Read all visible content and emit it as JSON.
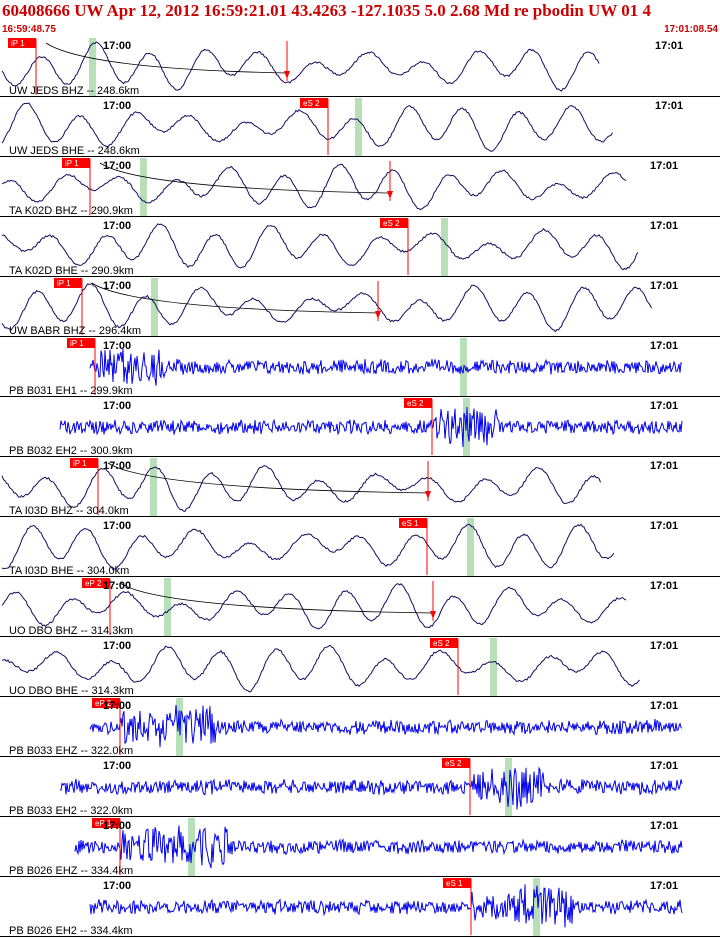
{
  "header": {
    "title": "60408666 UW Apr 12, 2012 16:59:21.01    43.4263 -127.1035  5.0 2.68 Md re pbodin UW 01    4",
    "start_time": "16:59:48.75",
    "end_time": "17:01:08.54"
  },
  "colors": {
    "title": "#cc0000",
    "broadband": "#1a0a60",
    "shortperiod": "#0000ee",
    "pick": "#ff0000",
    "window": "#b8e0b8"
  },
  "traces": [
    {
      "label": "UW JEDS BHZ -- 248.6km",
      "tick1": "17:00",
      "tick2": "17:01",
      "pick": "iP 1",
      "type": "bb",
      "pickx": 36,
      "windowx": 89,
      "tick1x": 103,
      "tick2x": 655,
      "secondx": 287,
      "curve": true
    },
    {
      "label": "UW JEDS BHE -- 248.6km",
      "tick1": "17:00",
      "tick2": "17:01",
      "pick": "eS 2",
      "type": "bb",
      "pickx": 328,
      "windowx": 355,
      "tick1x": 103,
      "tick2x": 655,
      "secondx": null,
      "curve": false
    },
    {
      "label": "TA K02D BHZ -- 290.9km",
      "tick1": "17:00",
      "tick2": "17:01",
      "pick": "iP 1",
      "type": "bb",
      "pickx": 90,
      "windowx": 140,
      "tick1x": 103,
      "tick2x": 650,
      "secondx": 390,
      "curve": true
    },
    {
      "label": "TA K02D BHE -- 290.9km",
      "tick1": "17:00",
      "tick2": "17:01",
      "pick": "eS 2",
      "type": "bb",
      "pickx": 408,
      "windowx": 441,
      "tick1x": 103,
      "tick2x": 650,
      "secondx": null,
      "curve": false
    },
    {
      "label": "UW BABR BHZ -- 296.4km",
      "tick1": "17:00",
      "tick2": "17:01",
      "pick": "iP 1",
      "type": "bb",
      "pickx": 82,
      "windowx": 151,
      "tick1x": 103,
      "tick2x": 650,
      "secondx": 378,
      "curve": true
    },
    {
      "label": "PB B031 EH1 -- 299.9km",
      "tick1": "17:00",
      "tick2": "17:01",
      "pick": "iP 1",
      "type": "sp",
      "pickx": 95,
      "windowx": 460,
      "tick1x": 103,
      "tick2x": 650,
      "secondx": null,
      "curve": false
    },
    {
      "label": "PB B032 EH2 -- 300.9km",
      "tick1": "17:00",
      "tick2": "17:01",
      "pick": "eS 2",
      "type": "sp",
      "pickx": 432,
      "windowx": 463,
      "tick1x": 103,
      "tick2x": 650,
      "secondx": null,
      "curve": false
    },
    {
      "label": "TA I03D BHZ -- 304.0km",
      "tick1": "17:00",
      "tick2": "17:01",
      "pick": "iP 1",
      "type": "bb",
      "pickx": 98,
      "windowx": 150,
      "tick1x": 103,
      "tick2x": 650,
      "secondx": 428,
      "curve": true
    },
    {
      "label": "TA I03D BHE -- 304.0km",
      "tick1": "17:00",
      "tick2": "17:01",
      "pick": "eS 1",
      "type": "bb",
      "pickx": 427,
      "windowx": 467,
      "tick1x": 103,
      "tick2x": 650,
      "secondx": null,
      "curve": false
    },
    {
      "label": "UO DBO BHZ -- 314.3km",
      "tick1": "17:00",
      "tick2": "17:01",
      "pick": "eP 2",
      "type": "bb",
      "pickx": 110,
      "windowx": 164,
      "tick1x": 103,
      "tick2x": 650,
      "secondx": 433,
      "curve": true
    },
    {
      "label": "UO DBO BHE -- 314.3km",
      "tick1": "17:00",
      "tick2": "17:01",
      "pick": "eS 2",
      "type": "bb",
      "pickx": 458,
      "windowx": 490,
      "tick1x": 103,
      "tick2x": 650,
      "secondx": null,
      "curve": false
    },
    {
      "label": "PB B033 EHZ -- 322.0km",
      "tick1": "17:00",
      "tick2": "17:01",
      "pick": "eP 2",
      "type": "sp",
      "pickx": 120,
      "windowx": 176,
      "tick1x": 103,
      "tick2x": 650,
      "secondx": null,
      "curve": false
    },
    {
      "label": "PB B033 EH2 -- 322.0km",
      "tick1": "17:00",
      "tick2": "17:01",
      "pick": "eS 2",
      "type": "sp",
      "pickx": 470,
      "windowx": 505,
      "tick1x": 103,
      "tick2x": 650,
      "secondx": null,
      "curve": false
    },
    {
      "label": "PB B026 EHZ -- 334.4km",
      "tick1": "17:00",
      "tick2": "17:01",
      "pick": "eP 1",
      "type": "sp",
      "pickx": 120,
      "windowx": 188,
      "tick1x": 103,
      "tick2x": 650,
      "secondx": null,
      "curve": false
    },
    {
      "label": "PB B026 EH2 -- 334.4km",
      "tick1": "17:00",
      "tick2": "17:01",
      "pick": "eS 1",
      "type": "sp",
      "pickx": 471,
      "windowx": 533,
      "tick1x": 103,
      "tick2x": 650,
      "secondx": null,
      "curve": false
    }
  ]
}
